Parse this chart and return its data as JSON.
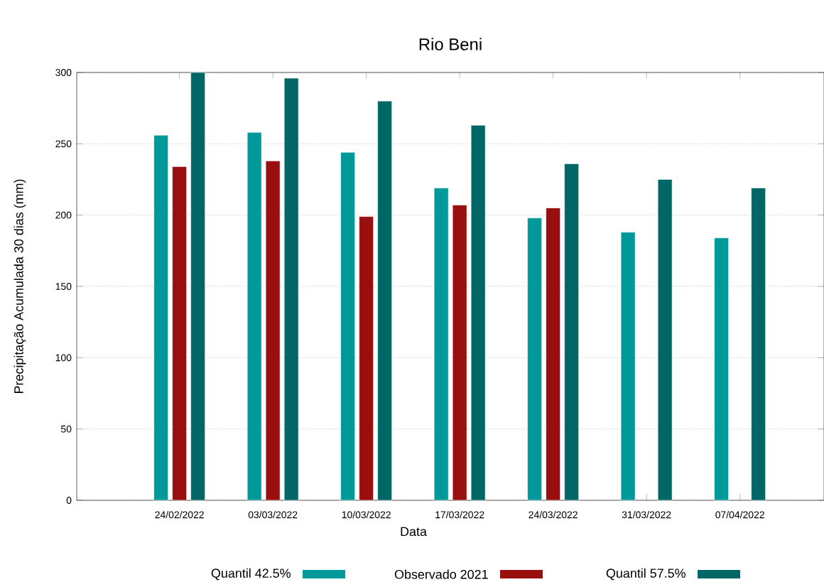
{
  "chart_data": {
    "type": "bar",
    "title": "Rio Beni",
    "xlabel": "Data",
    "ylabel": "Precipitação Acumulada 30 dias (mm)",
    "categories": [
      "24/02/2022",
      "03/03/2022",
      "10/03/2022",
      "17/03/2022",
      "24/03/2022",
      "31/03/2022",
      "07/04/2022"
    ],
    "series": [
      {
        "name": "Quantil 42.5%",
        "color": "#009999",
        "values": [
          256,
          258,
          244,
          219,
          198,
          188,
          184
        ]
      },
      {
        "name": "Observado 2021",
        "color": "#990f0f",
        "values": [
          234,
          238,
          199,
          207,
          205,
          null,
          null
        ]
      },
      {
        "name": "Quantil 57.5%",
        "color": "#006666",
        "values": [
          300,
          296,
          280,
          263,
          236,
          225,
          219
        ]
      }
    ],
    "ylim": [
      0,
      300
    ],
    "yticks": [
      0,
      50,
      100,
      150,
      200,
      250,
      300
    ],
    "grid": "y",
    "legend": "bottom"
  }
}
